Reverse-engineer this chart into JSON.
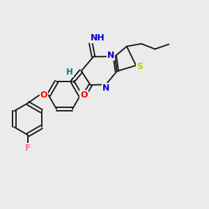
{
  "bg_color": "#ebebeb",
  "bond_color": "#1a1a1a",
  "bond_width": 1.4,
  "figsize": [
    3.0,
    3.0
  ],
  "dpi": 100,
  "colors": {
    "F": "#ff69b4",
    "O": "#ff0000",
    "N": "#0000cd",
    "S": "#c8c800",
    "H": "#008080",
    "C": "#1a1a1a"
  }
}
